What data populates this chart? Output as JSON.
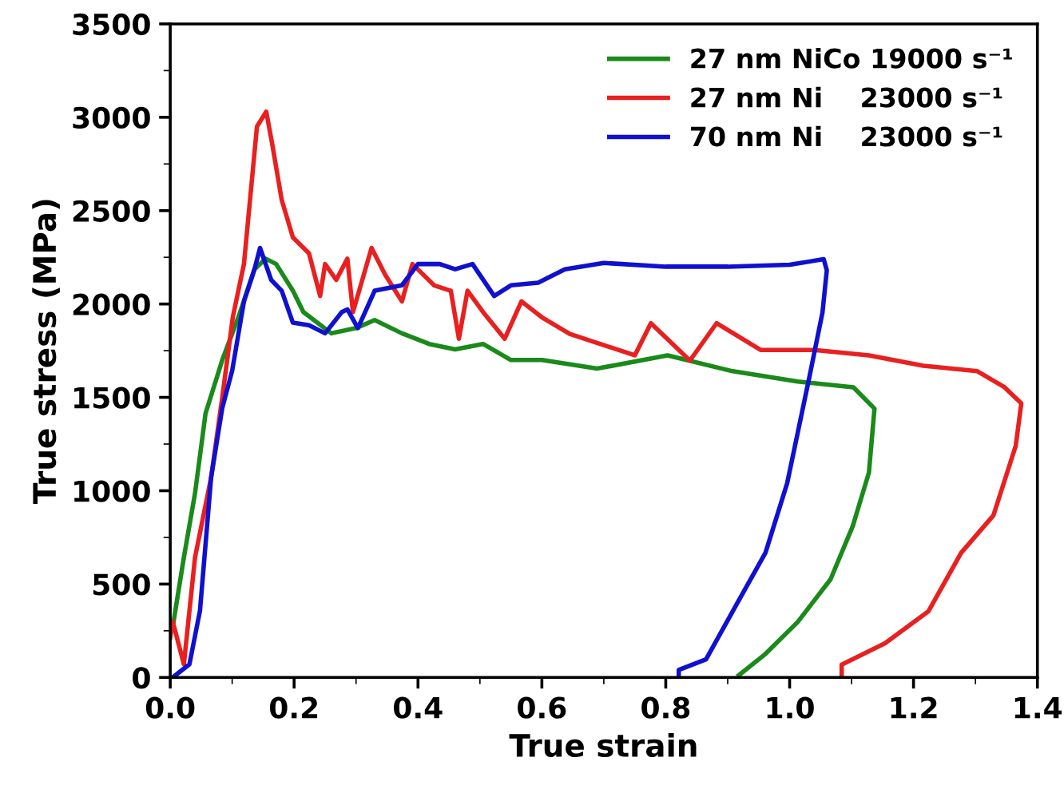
{
  "chart_data": {
    "type": "line",
    "xlabel": "True strain",
    "ylabel": "True stress (MPa)",
    "xlim": [
      0,
      1.4
    ],
    "xticks": [
      {
        "value": 0,
        "label": "0.0"
      },
      0.2,
      0.4,
      0.6,
      0.8,
      {
        "value": 1,
        "label": "1.0"
      },
      1.2,
      1.4
    ],
    "ylim": [
      0,
      3500
    ],
    "yticks": [
      0,
      500,
      1000,
      1500,
      2000,
      2500,
      3000,
      3500
    ],
    "legend": "top right",
    "grid": false,
    "marker": "none",
    "line_style": "solid",
    "series": [
      {
        "name": "27 nm NiCo 19000 s⁻¹",
        "color": "#1a8a1a",
        "x": [
          0.004,
          0.022,
          0.04,
          0.057,
          0.084,
          0.11,
          0.136,
          0.154,
          0.171,
          0.198,
          0.215,
          0.26,
          0.3,
          0.33,
          0.374,
          0.418,
          0.46,
          0.505,
          0.55,
          0.6,
          0.689,
          0.803,
          0.908,
          1.013,
          1.103,
          1.137,
          1.128,
          1.102,
          1.066,
          1.013,
          0.961,
          0.918
        ],
        "values": [
          270,
          643,
          986,
          1414,
          1700,
          1929,
          2186,
          2243,
          2214,
          2071,
          1957,
          1843,
          1871,
          1914,
          1843,
          1786,
          1757,
          1786,
          1700,
          1700,
          1654,
          1725,
          1640,
          1585,
          1554,
          1440,
          1097,
          811,
          525,
          297,
          126,
          12
        ]
      },
      {
        "name": "27 nm Ni    23000 s⁻¹",
        "color": "#e82020",
        "x": [
          0.0,
          0.004,
          0.022,
          0.04,
          0.066,
          0.084,
          0.101,
          0.119,
          0.14,
          0.155,
          0.165,
          0.18,
          0.198,
          0.224,
          0.242,
          0.25,
          0.268,
          0.286,
          0.295,
          0.325,
          0.347,
          0.374,
          0.391,
          0.426,
          0.453,
          0.466,
          0.48,
          0.505,
          0.54,
          0.567,
          0.6,
          0.645,
          0.75,
          0.776,
          0.839,
          0.882,
          0.953,
          1.04,
          1.128,
          1.216,
          1.303,
          1.347,
          1.374,
          1.365,
          1.329,
          1.277,
          1.224,
          1.154,
          1.084,
          1.084
        ],
        "values": [
          214,
          300,
          71,
          643,
          1071,
          1500,
          1929,
          2214,
          2950,
          3030,
          2850,
          2557,
          2357,
          2271,
          2043,
          2214,
          2129,
          2243,
          1957,
          2300,
          2157,
          2014,
          2214,
          2100,
          2071,
          1814,
          2071,
          1957,
          1814,
          2014,
          1929,
          1840,
          1725,
          1897,
          1697,
          1897,
          1754,
          1754,
          1725,
          1669,
          1640,
          1554,
          1468,
          1240,
          868,
          668,
          354,
          183,
          69,
          0
        ]
      },
      {
        "name": "70 nm Ni    23000 s⁻¹",
        "color": "#1010d0",
        "x": [
          0.004,
          0.031,
          0.048,
          0.066,
          0.084,
          0.1,
          0.119,
          0.136,
          0.145,
          0.163,
          0.18,
          0.198,
          0.224,
          0.25,
          0.277,
          0.286,
          0.303,
          0.33,
          0.374,
          0.4,
          0.435,
          0.46,
          0.488,
          0.523,
          0.55,
          0.594,
          0.637,
          0.7,
          0.8,
          0.9,
          1.0,
          1.055,
          1.06,
          1.053,
          1.032,
          0.996,
          0.961,
          0.908,
          0.865,
          0.821,
          0.821
        ],
        "values": [
          0,
          71,
          357,
          1071,
          1443,
          1643,
          2014,
          2186,
          2300,
          2129,
          2071,
          1900,
          1886,
          1843,
          1957,
          1971,
          1871,
          2071,
          2100,
          2214,
          2214,
          2186,
          2214,
          2043,
          2100,
          2114,
          2186,
          2220,
          2200,
          2200,
          2210,
          2240,
          2180,
          1954,
          1611,
          1040,
          668,
          354,
          97,
          40,
          0
        ]
      }
    ]
  }
}
